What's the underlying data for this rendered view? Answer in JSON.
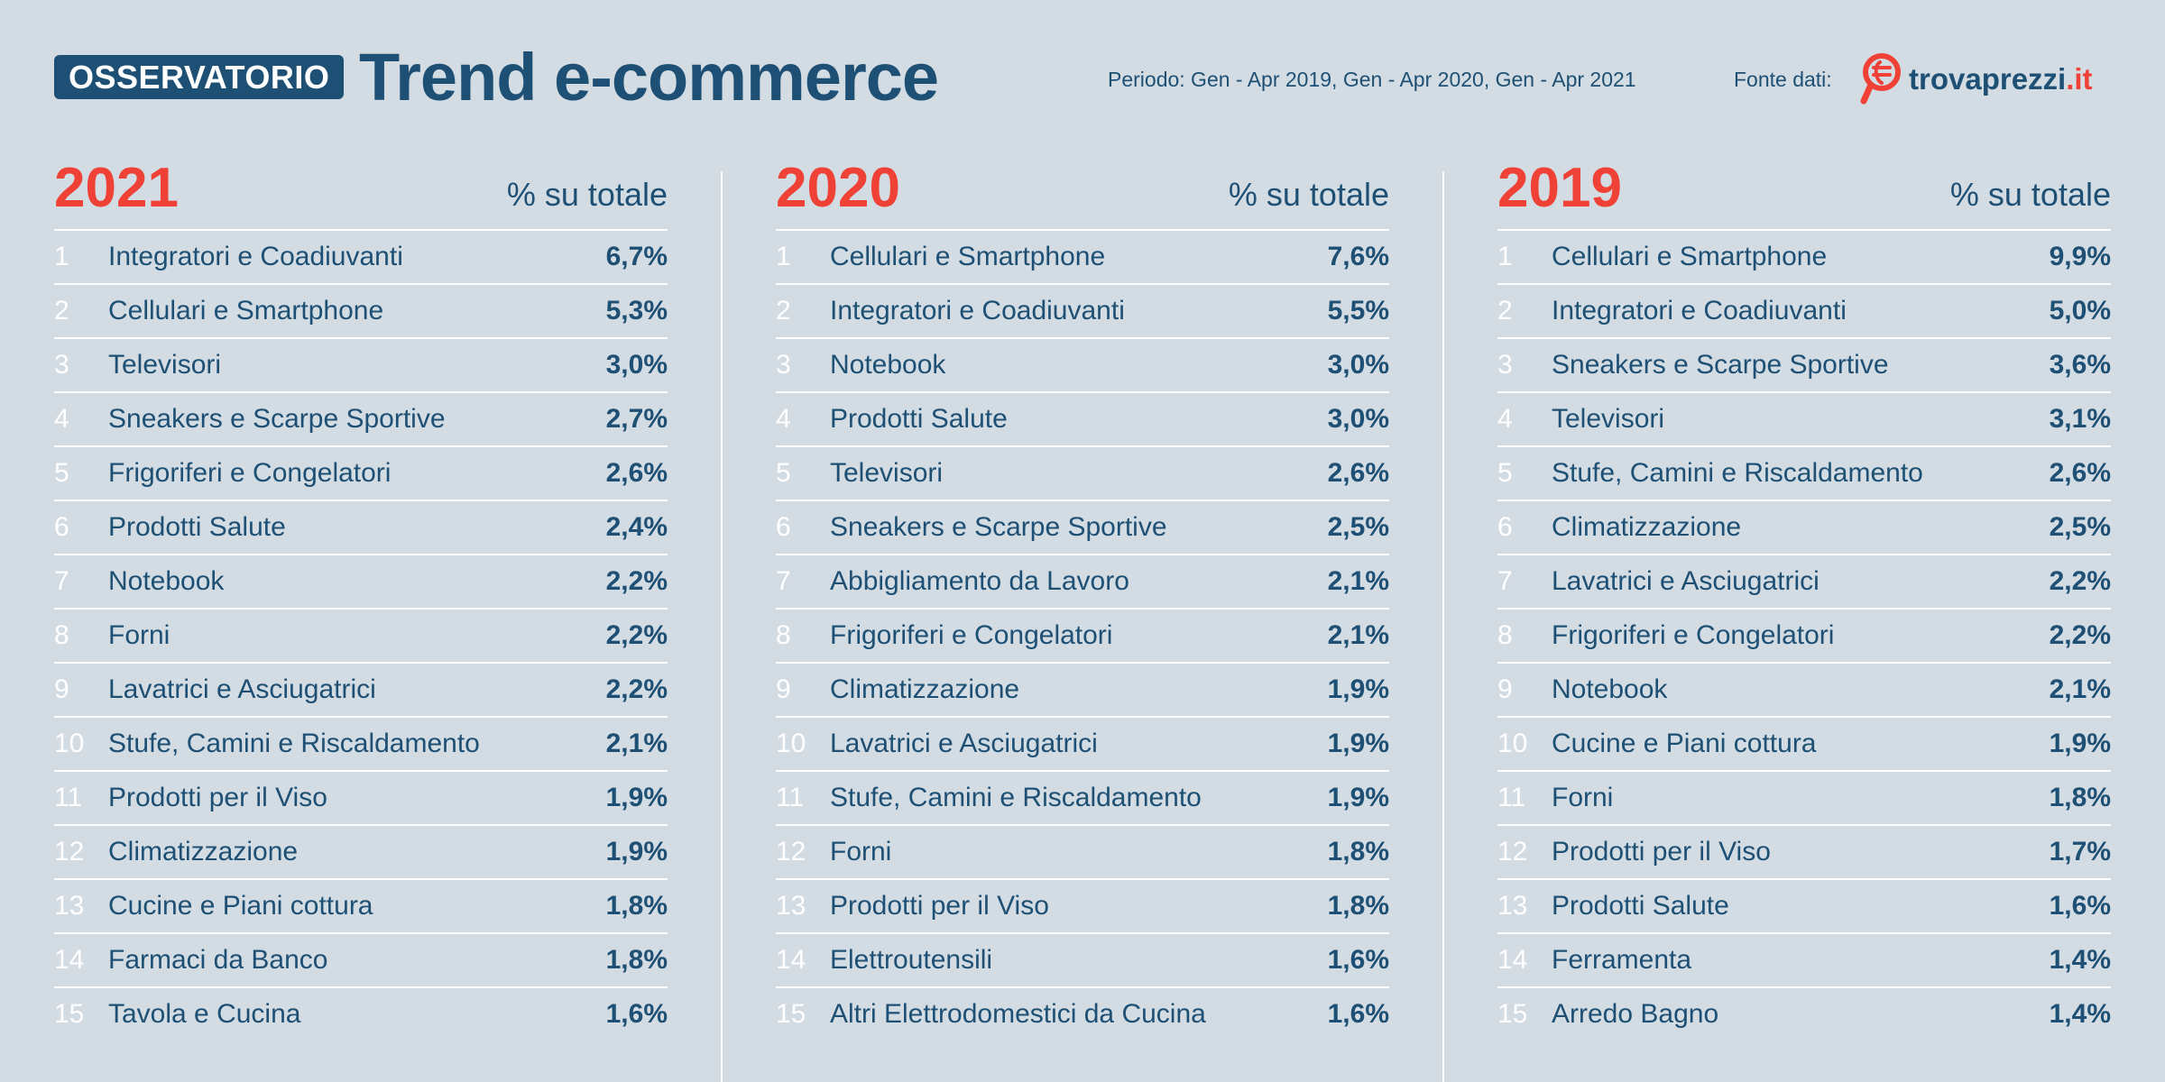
{
  "header": {
    "badge": "OSSERVATORIO",
    "title": "Trend e-commerce",
    "period": "Periodo: Gen - Apr 2019, Gen - Apr 2020, Gen - Apr 2021",
    "source_label": "Fonte dati:",
    "brand_name": "trovaprezzi",
    "brand_tld": ".it"
  },
  "colors": {
    "background": "#d3dbe3",
    "primary": "#1d5074",
    "accent": "#ef4136",
    "rule": "#ffffff"
  },
  "chart_data": [
    {
      "type": "table",
      "title": "2021",
      "value_header": "% su totale",
      "rows": [
        {
          "rank": "1",
          "category": "Integratori e Coadiuvanti",
          "value": "6,7%"
        },
        {
          "rank": "2",
          "category": "Cellulari e Smartphone",
          "value": "5,3%"
        },
        {
          "rank": "3",
          "category": "Televisori",
          "value": "3,0%"
        },
        {
          "rank": "4",
          "category": "Sneakers e Scarpe Sportive",
          "value": "2,7%"
        },
        {
          "rank": "5",
          "category": "Frigoriferi e Congelatori",
          "value": "2,6%"
        },
        {
          "rank": "6",
          "category": "Prodotti Salute",
          "value": "2,4%"
        },
        {
          "rank": "7",
          "category": "Notebook",
          "value": "2,2%"
        },
        {
          "rank": "8",
          "category": "Forni",
          "value": "2,2%"
        },
        {
          "rank": "9",
          "category": "Lavatrici e Asciugatrici",
          "value": "2,2%"
        },
        {
          "rank": "10",
          "category": "Stufe, Camini e Riscaldamento",
          "value": "2,1%"
        },
        {
          "rank": "11",
          "category": "Prodotti per il Viso",
          "value": "1,9%"
        },
        {
          "rank": "12",
          "category": "Climatizzazione",
          "value": "1,9%"
        },
        {
          "rank": "13",
          "category": "Cucine e Piani cottura",
          "value": "1,8%"
        },
        {
          "rank": "14",
          "category": "Farmaci da Banco",
          "value": "1,8%"
        },
        {
          "rank": "15",
          "category": "Tavola e Cucina",
          "value": "1,6%"
        }
      ]
    },
    {
      "type": "table",
      "title": "2020",
      "value_header": "% su totale",
      "rows": [
        {
          "rank": "1",
          "category": "Cellulari e Smartphone",
          "value": "7,6%"
        },
        {
          "rank": "2",
          "category": "Integratori e Coadiuvanti",
          "value": "5,5%"
        },
        {
          "rank": "3",
          "category": "Notebook",
          "value": "3,0%"
        },
        {
          "rank": "4",
          "category": "Prodotti Salute",
          "value": "3,0%"
        },
        {
          "rank": "5",
          "category": "Televisori",
          "value": "2,6%"
        },
        {
          "rank": "6",
          "category": "Sneakers e Scarpe Sportive",
          "value": "2,5%"
        },
        {
          "rank": "7",
          "category": "Abbigliamento da Lavoro",
          "value": "2,1%"
        },
        {
          "rank": "8",
          "category": "Frigoriferi e Congelatori",
          "value": "2,1%"
        },
        {
          "rank": "9",
          "category": "Climatizzazione",
          "value": "1,9%"
        },
        {
          "rank": "10",
          "category": "Lavatrici e Asciugatrici",
          "value": "1,9%"
        },
        {
          "rank": "11",
          "category": "Stufe, Camini e Riscaldamento",
          "value": "1,9%"
        },
        {
          "rank": "12",
          "category": "Forni",
          "value": "1,8%"
        },
        {
          "rank": "13",
          "category": "Prodotti per il Viso",
          "value": "1,8%"
        },
        {
          "rank": "14",
          "category": "Elettroutensili",
          "value": "1,6%"
        },
        {
          "rank": "15",
          "category": "Altri Elettrodomestici da Cucina",
          "value": "1,6%"
        }
      ]
    },
    {
      "type": "table",
      "title": "2019",
      "value_header": "% su totale",
      "rows": [
        {
          "rank": "1",
          "category": "Cellulari e Smartphone",
          "value": "9,9%"
        },
        {
          "rank": "2",
          "category": "Integratori e Coadiuvanti",
          "value": "5,0%"
        },
        {
          "rank": "3",
          "category": "Sneakers e Scarpe Sportive",
          "value": "3,6%"
        },
        {
          "rank": "4",
          "category": "Televisori",
          "value": "3,1%"
        },
        {
          "rank": "5",
          "category": "Stufe, Camini e Riscaldamento",
          "value": "2,6%"
        },
        {
          "rank": "6",
          "category": "Climatizzazione",
          "value": "2,5%"
        },
        {
          "rank": "7",
          "category": "Lavatrici e Asciugatrici",
          "value": "2,2%"
        },
        {
          "rank": "8",
          "category": "Frigoriferi e Congelatori",
          "value": "2,2%"
        },
        {
          "rank": "9",
          "category": "Notebook",
          "value": "2,1%"
        },
        {
          "rank": "10",
          "category": "Cucine e Piani cottura",
          "value": "1,9%"
        },
        {
          "rank": "11",
          "category": "Forni",
          "value": "1,8%"
        },
        {
          "rank": "12",
          "category": "Prodotti per il Viso",
          "value": "1,7%"
        },
        {
          "rank": "13",
          "category": "Prodotti Salute",
          "value": "1,6%"
        },
        {
          "rank": "14",
          "category": "Ferramenta",
          "value": "1,4%"
        },
        {
          "rank": "15",
          "category": "Arredo Bagno",
          "value": "1,4%"
        }
      ]
    }
  ]
}
